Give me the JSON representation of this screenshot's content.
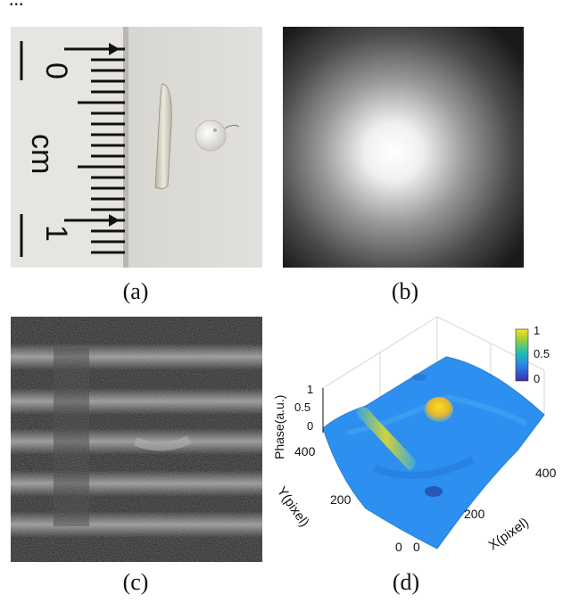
{
  "header_text": "...",
  "figure": {
    "panels": [
      {
        "id": "a",
        "caption": "(a)",
        "ruler_labels": [
          "0",
          "cm",
          "1"
        ],
        "description_items": [
          "fiber-segment",
          "sphere-object"
        ]
      },
      {
        "id": "b",
        "caption": "(b)"
      },
      {
        "id": "c",
        "caption": "(c)"
      },
      {
        "id": "d",
        "caption": "(d)",
        "z_axis_label": "Phase(a.u.)",
        "z_ticks": [
          "1",
          "0.5",
          "0"
        ],
        "y_axis_label": "Y(pixel)",
        "y_ticks": [
          "400",
          "200",
          "0"
        ],
        "x_axis_label": "X(pixel)",
        "x_ticks": [
          "0",
          "200",
          "400"
        ],
        "colorbar_ticks": [
          "1",
          "0.5",
          "0"
        ]
      }
    ]
  },
  "colors": {
    "colormap_high": "#f5e11d",
    "colormap_mid": "#23bfae",
    "colormap_low": "#3b2ea8",
    "surface_base": "#2d8ff0"
  }
}
